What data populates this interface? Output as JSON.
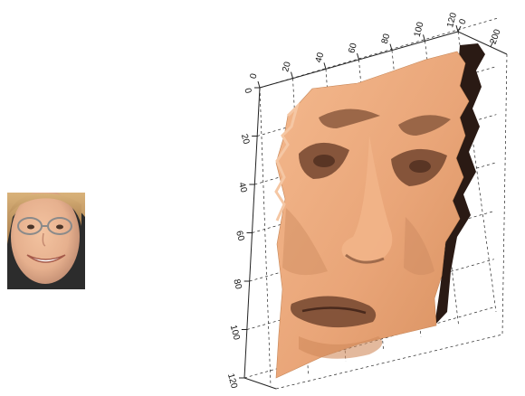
{
  "photo": {
    "subject": "face photo",
    "skin_color": "#e8b89a",
    "hair_color": "#c79a62",
    "background_color": "#2c2c2c"
  },
  "chart_data": {
    "type": "3d-surface",
    "title": "",
    "xlabel": "",
    "ylabel": "",
    "zlabel": "",
    "x_ticks": [
      "0",
      "20",
      "40",
      "60",
      "80",
      "100",
      "120"
    ],
    "y_ticks": [
      "0",
      "20",
      "40",
      "60",
      "80",
      "100",
      "120"
    ],
    "z_ticks": [
      "0",
      "200"
    ],
    "xlim": [
      0,
      120
    ],
    "ylim": [
      0,
      120
    ],
    "zlim": [
      0,
      300
    ],
    "grid": true,
    "surface_color": "#e9a578",
    "shadow_color": "#2a1a14"
  }
}
